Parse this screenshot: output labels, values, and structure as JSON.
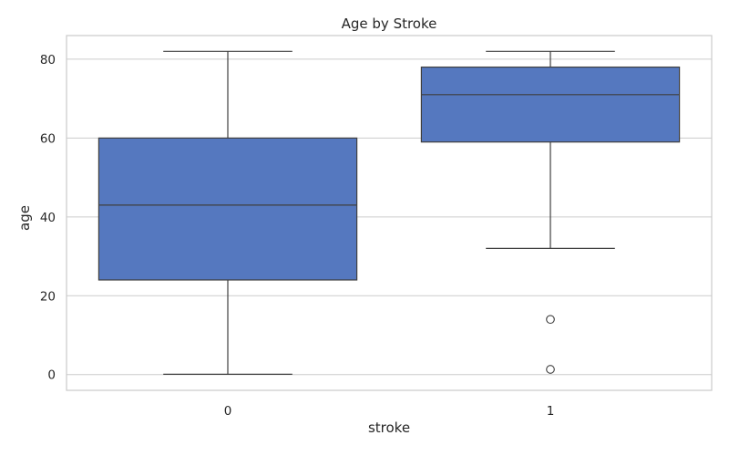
{
  "chart_data": {
    "type": "box",
    "title": "Age by Stroke",
    "xlabel": "stroke",
    "ylabel": "age",
    "categories": [
      "0",
      "1"
    ],
    "ylim": [
      -4,
      86
    ],
    "yticks": [
      0,
      20,
      40,
      60,
      80
    ],
    "grid": true,
    "box_color": "#5578BF",
    "boxes": [
      {
        "category": "0",
        "whisker_low": 0.08,
        "q1": 24,
        "median": 43,
        "q3": 60,
        "whisker_high": 82,
        "outliers": []
      },
      {
        "category": "1",
        "whisker_low": 32,
        "q1": 59,
        "median": 71,
        "q3": 78,
        "whisker_high": 82,
        "outliers": [
          14,
          1.32
        ]
      }
    ]
  }
}
